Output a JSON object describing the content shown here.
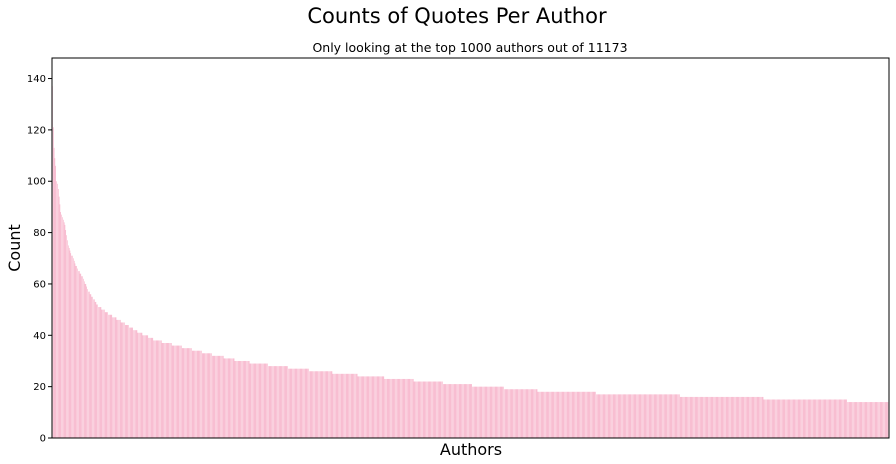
{
  "chart_data": {
    "type": "bar",
    "title": "Counts of Quotes Per Author",
    "subtitle": "Only looking at the top 1000 authors out of 11173",
    "xlabel": "Authors",
    "ylabel": "Count",
    "ylim": [
      0,
      148
    ],
    "yticks": [
      0,
      20,
      40,
      60,
      80,
      100,
      120,
      140
    ],
    "x_tick_labels_shown": false,
    "grid": false,
    "legend": "none",
    "bar_color": "#f48fb1",
    "n_bars": 1000,
    "sorted": "descending",
    "values_by_rank": [
      {
        "rank": 1,
        "value": 137
      },
      {
        "rank": 2,
        "value": 121
      },
      {
        "rank": 3,
        "value": 113
      },
      {
        "rank": 4,
        "value": 109
      },
      {
        "rank": 5,
        "value": 106
      },
      {
        "rank": 6,
        "value": 100
      },
      {
        "rank": 8,
        "value": 97
      },
      {
        "rank": 11,
        "value": 88
      },
      {
        "rank": 13,
        "value": 86
      },
      {
        "rank": 15,
        "value": 84
      },
      {
        "rank": 17,
        "value": 81
      },
      {
        "rank": 20,
        "value": 75
      },
      {
        "rank": 23,
        "value": 72
      },
      {
        "rank": 27,
        "value": 69
      },
      {
        "rank": 32,
        "value": 65
      },
      {
        "rank": 38,
        "value": 62
      },
      {
        "rank": 44,
        "value": 57
      },
      {
        "rank": 50,
        "value": 54
      },
      {
        "rank": 57,
        "value": 51
      },
      {
        "rank": 65,
        "value": 49
      },
      {
        "rank": 75,
        "value": 47
      },
      {
        "rank": 90,
        "value": 44
      },
      {
        "rank": 105,
        "value": 41
      },
      {
        "rank": 125,
        "value": 38
      },
      {
        "rank": 150,
        "value": 36
      },
      {
        "rank": 185,
        "value": 33
      },
      {
        "rank": 225,
        "value": 30
      },
      {
        "rank": 270,
        "value": 28
      },
      {
        "rank": 320,
        "value": 26
      },
      {
        "rank": 380,
        "value": 24
      },
      {
        "rank": 450,
        "value": 22
      },
      {
        "rank": 520,
        "value": 20
      },
      {
        "rank": 600,
        "value": 18
      },
      {
        "rank": 700,
        "value": 17
      },
      {
        "rank": 800,
        "value": 16
      },
      {
        "rank": 900,
        "value": 15
      },
      {
        "rank": 1000,
        "value": 14
      }
    ]
  }
}
